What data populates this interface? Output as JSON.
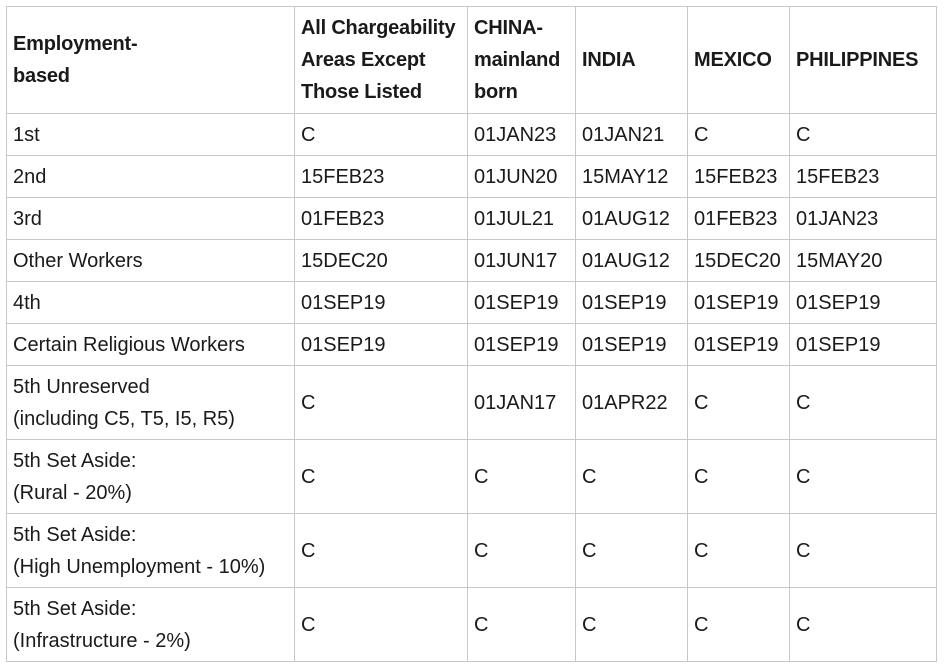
{
  "table": {
    "headers": [
      [
        "Employment-",
        "based"
      ],
      [
        "All Chargeability",
        "Areas Except",
        "Those Listed"
      ],
      [
        "CHINA-",
        "mainland",
        "born"
      ],
      [
        "INDIA"
      ],
      [
        "MEXICO"
      ],
      [
        "PHILIPPINES"
      ]
    ],
    "rows": [
      {
        "category": [
          "1st"
        ],
        "values": [
          "C",
          "01JAN23",
          "01JAN21",
          "C",
          "C"
        ]
      },
      {
        "category": [
          "2nd"
        ],
        "values": [
          "15FEB23",
          "01JUN20",
          "15MAY12",
          "15FEB23",
          "15FEB23"
        ]
      },
      {
        "category": [
          "3rd"
        ],
        "values": [
          "01FEB23",
          "01JUL21",
          "01AUG12",
          "01FEB23",
          "01JAN23"
        ]
      },
      {
        "category": [
          "Other Workers"
        ],
        "values": [
          "15DEC20",
          "01JUN17",
          "01AUG12",
          "15DEC20",
          "15MAY20"
        ]
      },
      {
        "category": [
          "4th"
        ],
        "values": [
          "01SEP19",
          "01SEP19",
          "01SEP19",
          "01SEP19",
          "01SEP19"
        ]
      },
      {
        "category": [
          "Certain Religious Workers"
        ],
        "values": [
          "01SEP19",
          "01SEP19",
          "01SEP19",
          "01SEP19",
          "01SEP19"
        ]
      },
      {
        "category": [
          "5th Unreserved",
          "(including C5, T5, I5, R5)"
        ],
        "values": [
          "C",
          "01JAN17",
          "01APR22",
          "C",
          "C"
        ]
      },
      {
        "category": [
          "5th Set Aside:",
          "(Rural - 20%)"
        ],
        "values": [
          "C",
          "C",
          "C",
          "C",
          "C"
        ]
      },
      {
        "category": [
          "5th Set Aside:",
          "(High Unemployment - 10%)"
        ],
        "values": [
          "C",
          "C",
          "C",
          "C",
          "C"
        ]
      },
      {
        "category": [
          "5th Set Aside:",
          "(Infrastructure - 2%)"
        ],
        "values": [
          "C",
          "C",
          "C",
          "C",
          "C"
        ]
      }
    ]
  }
}
